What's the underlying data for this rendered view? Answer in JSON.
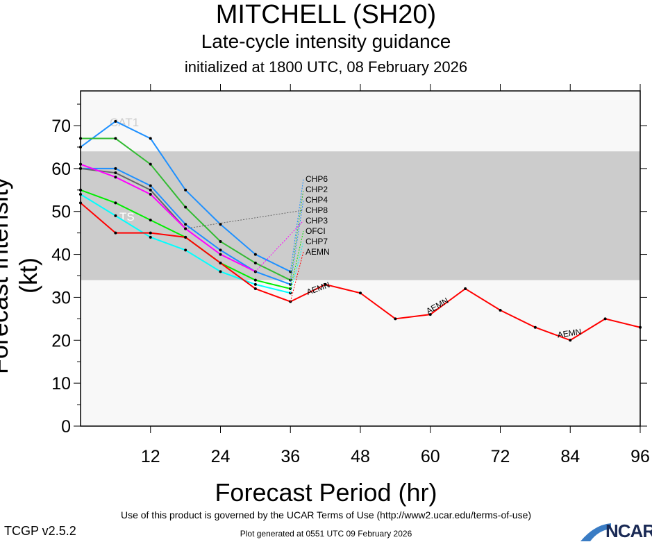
{
  "header": {
    "title": "MITCHELL (SH20)",
    "subtitle": "Late-cycle intensity guidance",
    "init": "initialized at 1800 UTC, 08 February 2026"
  },
  "footer": {
    "terms": "Use of this product is governed by the UCAR Terms of Use (http://www2.ucar.edu/terms-of-use)",
    "version": "TCGP v2.5.2",
    "generated": "Plot generated at 0551 UTC   09 February 2026",
    "logo": "NCAR"
  },
  "chart_data": {
    "type": "line",
    "title": "MITCHELL (SH20)",
    "xlabel": "Forecast Period (hr)",
    "ylabel": "Forecast Intensity (kt)",
    "xlim": [
      0,
      96
    ],
    "ylim": [
      0,
      78
    ],
    "xticks": [
      12,
      24,
      36,
      48,
      60,
      72,
      84,
      96
    ],
    "yticks": [
      0,
      10,
      20,
      30,
      40,
      50,
      60,
      70
    ],
    "bands": [
      {
        "label": "TS",
        "from": 34,
        "to": 64,
        "color": "#CCCCCC"
      },
      {
        "label": "CAT1",
        "from": 64,
        "to": 83,
        "color": "#F8F8F8"
      }
    ],
    "series": [
      {
        "name": "CHP6",
        "color": "#1E90FF",
        "x": [
          0,
          6,
          12,
          18,
          24,
          30,
          36
        ],
        "y": [
          65,
          71,
          67,
          55,
          47,
          40,
          36
        ]
      },
      {
        "name": "CHP2",
        "color": "#33BB33",
        "x": [
          0,
          6,
          12,
          18,
          24,
          30,
          36
        ],
        "y": [
          67,
          67,
          61,
          51,
          43,
          38,
          34
        ]
      },
      {
        "name": "CHP4",
        "color": "#1E90FF",
        "x": [
          0,
          6,
          12,
          18,
          24,
          30,
          36
        ],
        "y": [
          60,
          60,
          56,
          47,
          41,
          36,
          33
        ]
      },
      {
        "name": "CHP8",
        "color": "#666666",
        "x": [
          0,
          6,
          12,
          18
        ],
        "y": [
          60,
          59,
          55,
          46
        ]
      },
      {
        "name": "CHP3",
        "color": "#FF00FF",
        "x": [
          0,
          6,
          12,
          18,
          24,
          30
        ],
        "y": [
          61,
          58,
          54,
          46,
          40,
          36
        ]
      },
      {
        "name": "OFCI",
        "color": "#00EE00",
        "x": [
          0,
          6,
          12,
          18,
          24,
          30,
          36
        ],
        "y": [
          55,
          52,
          48,
          44,
          38,
          34,
          32
        ]
      },
      {
        "name": "CHP7",
        "color": "#00FFFF",
        "x": [
          0,
          6,
          12,
          18,
          24,
          30,
          36
        ],
        "y": [
          54,
          49,
          44,
          41,
          36,
          33,
          31
        ]
      },
      {
        "name": "AEMN",
        "color": "#FF0000",
        "x": [
          0,
          6,
          12,
          18,
          24,
          30,
          36,
          42,
          48,
          54,
          60,
          66,
          72,
          78,
          84,
          90,
          96
        ],
        "y": [
          52,
          45,
          45,
          44,
          38,
          32,
          29,
          33,
          31,
          25,
          26,
          32,
          27,
          23,
          20,
          25,
          23
        ]
      }
    ]
  }
}
